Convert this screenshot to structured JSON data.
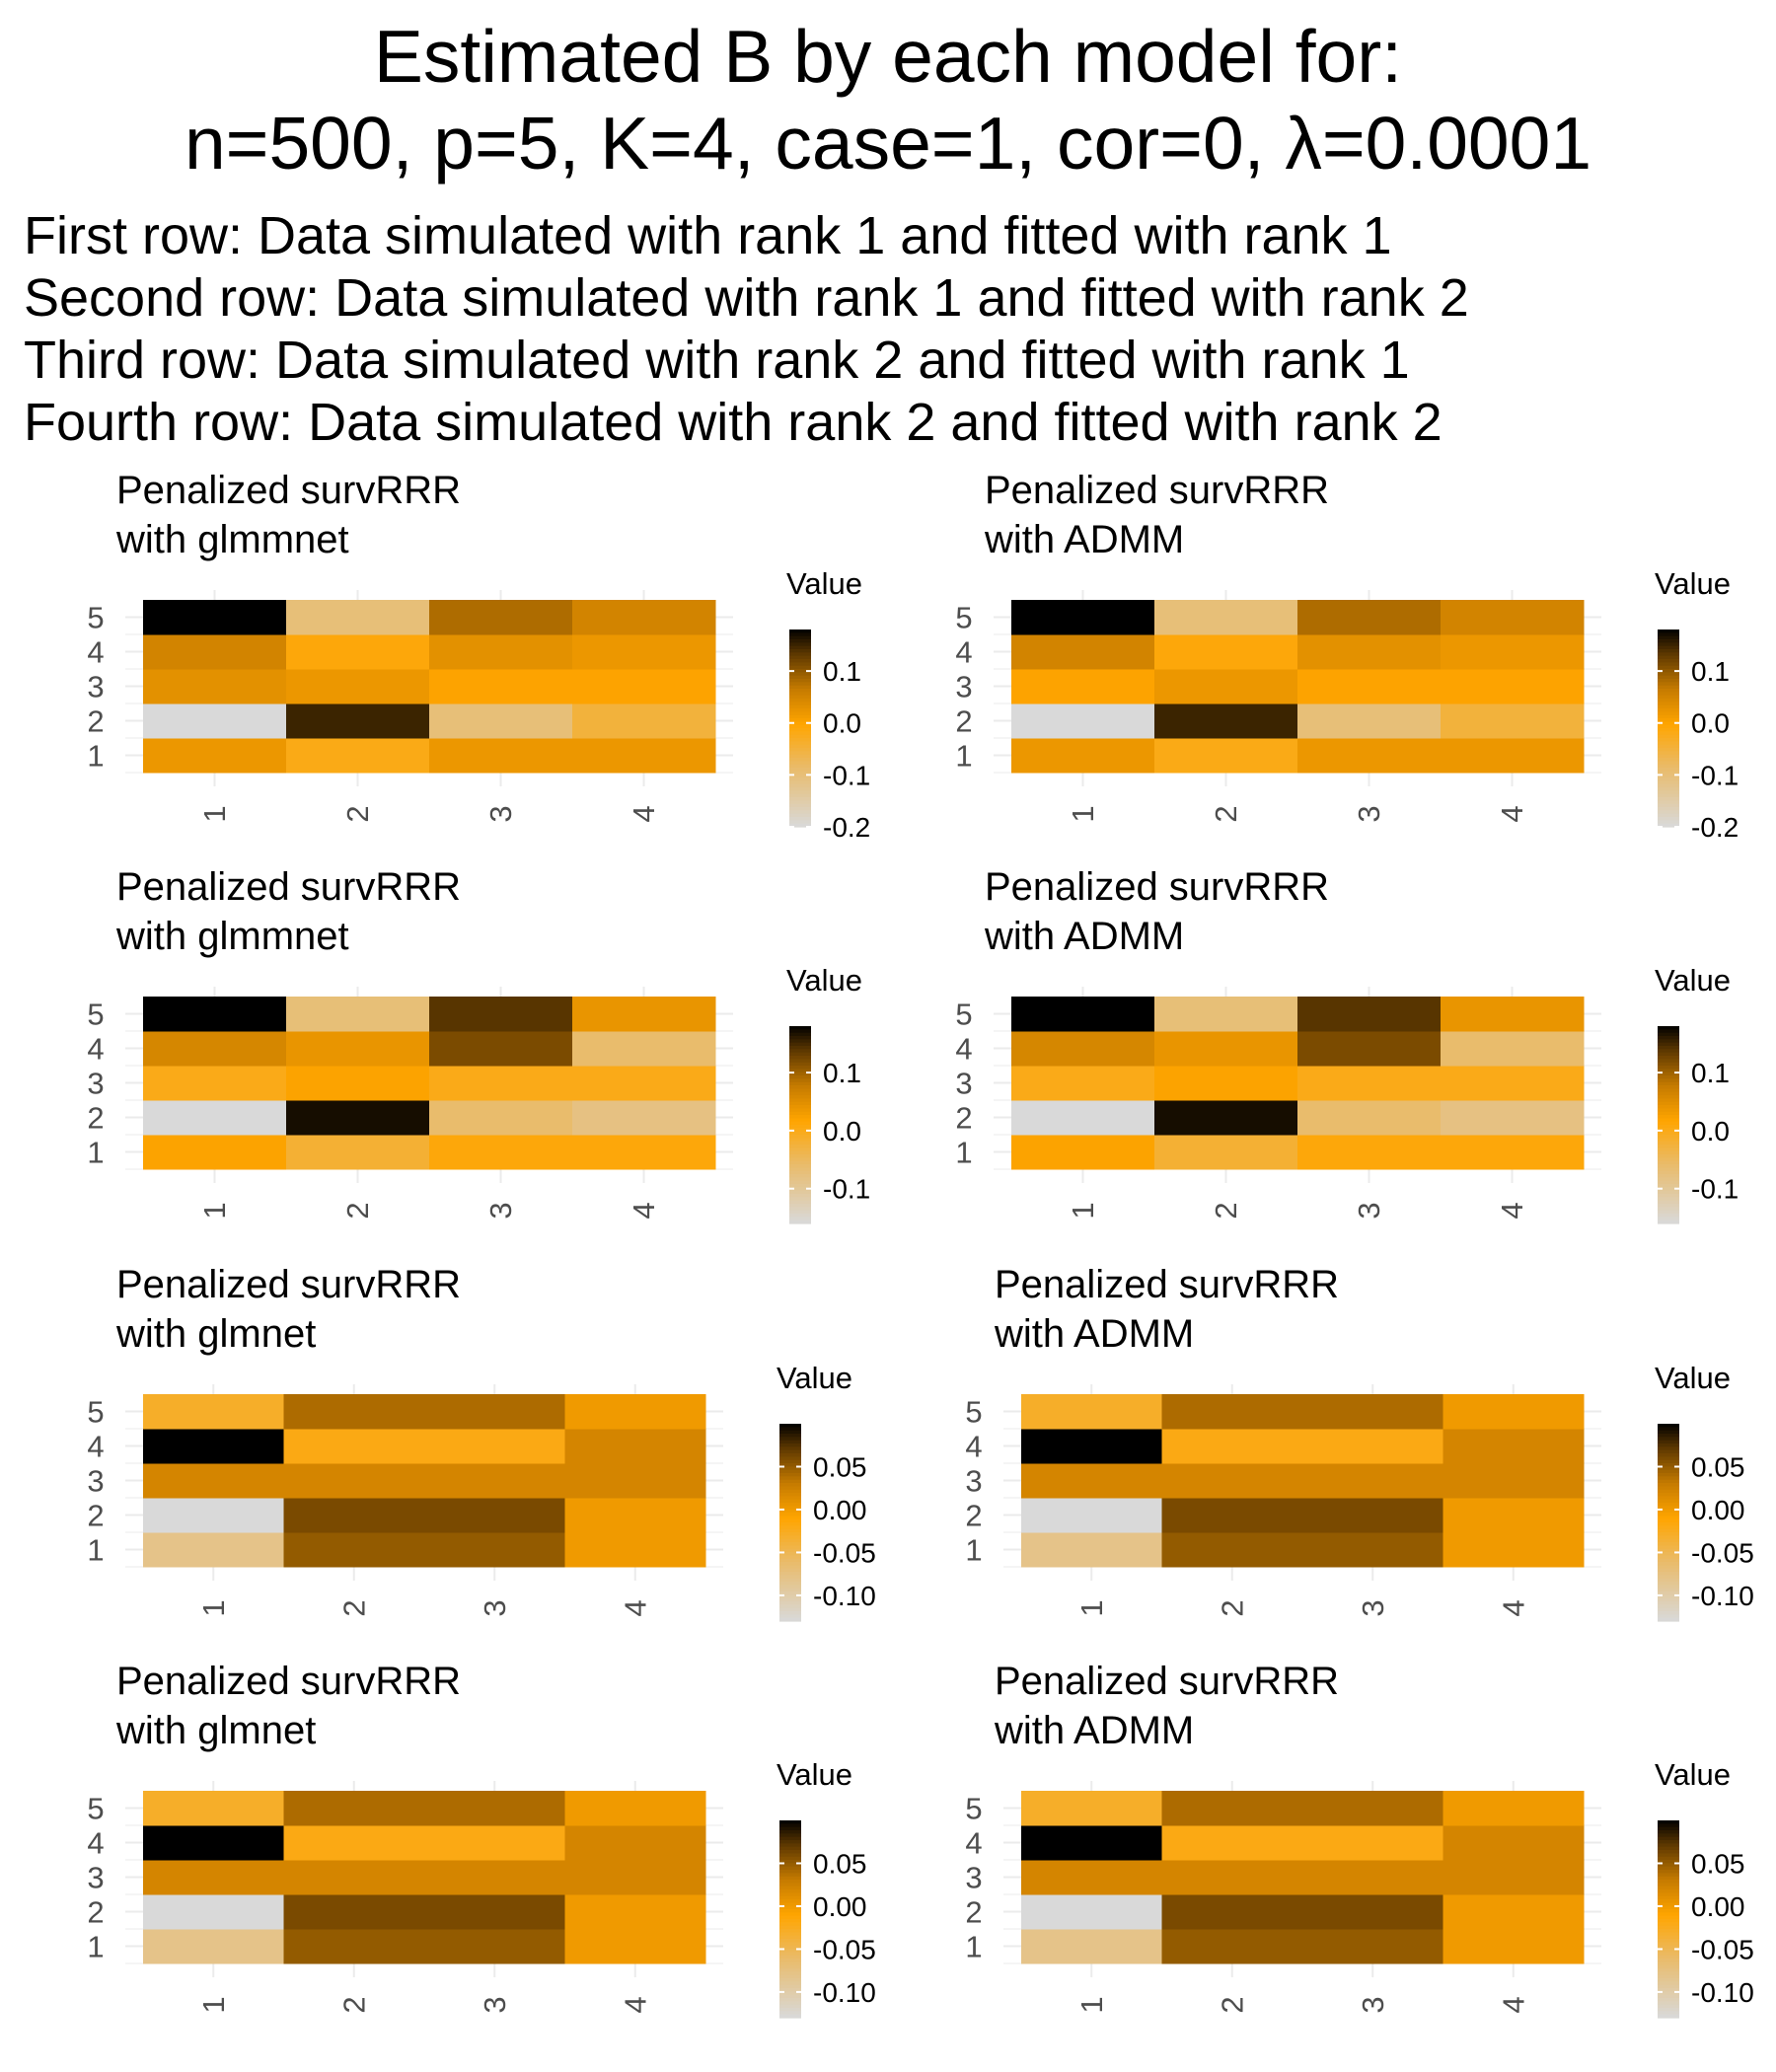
{
  "title_lines": [
    "Estimated B by each model for:",
    "n=500, p=5, K=4, case=1, cor=0, λ=0.0001"
  ],
  "subtitle_lines": [
    "First row: Data simulated with rank 1 and fitted with rank 1",
    "Second row: Data simulated with rank 1 and fitted with rank 2",
    "Third row: Data simulated with rank 2 and fitted with rank 1",
    "Fourth row: Data simulated with rank 2 and fitted with rank 2"
  ],
  "colors": {
    "low": "#d9d9d9",
    "mid_low": "#e9bb6a",
    "mid": "#ffa500",
    "mid_high": "#c47a00",
    "high_mid": "#5a3600",
    "high": "#000000",
    "grid": "#ebebeb",
    "axis_text": "#4d4d4d"
  },
  "chart_data": [
    {
      "type": "heatmap",
      "title": "Penalized survRRR\nwith glmmnet",
      "x_ticks": [
        "1",
        "2",
        "3",
        "4"
      ],
      "y_ticks": [
        "1",
        "2",
        "3",
        "4",
        "5"
      ],
      "legend_title": "Value",
      "legend_ticks": [
        0.1,
        0.0,
        -0.1,
        -0.2
      ],
      "value_range": [
        -0.2,
        0.18
      ],
      "values": [
        [
          0.02,
          -0.2,
          0.03,
          0.05,
          0.18
        ],
        [
          -0.02,
          0.15,
          0.02,
          -0.01,
          -0.1
        ],
        [
          0.02,
          -0.1,
          0.0,
          0.03,
          0.08
        ],
        [
          0.02,
          -0.05,
          0.0,
          0.02,
          0.05
        ]
      ]
    },
    {
      "type": "heatmap",
      "title": "Penalized survRRR\nwith ADMM",
      "x_ticks": [
        "1",
        "2",
        "3",
        "4"
      ],
      "y_ticks": [
        "1",
        "2",
        "3",
        "4",
        "5"
      ],
      "legend_title": "Value",
      "legend_ticks": [
        0.1,
        0.0,
        -0.1,
        -0.2
      ],
      "value_range": [
        -0.2,
        0.18
      ],
      "values": [
        [
          0.02,
          -0.2,
          0.0,
          0.05,
          0.18
        ],
        [
          -0.02,
          0.15,
          0.02,
          -0.01,
          -0.1
        ],
        [
          0.02,
          -0.1,
          0.0,
          0.03,
          0.08
        ],
        [
          0.02,
          -0.05,
          0.0,
          0.02,
          0.05
        ]
      ]
    },
    {
      "type": "heatmap",
      "title": "Penalized survRRR\nwith glmmnet",
      "x_ticks": [
        "1",
        "2",
        "3",
        "4"
      ],
      "y_ticks": [
        "1",
        "2",
        "3",
        "4",
        "5"
      ],
      "legend_title": "Value",
      "legend_ticks": [
        0.1,
        0.0,
        -0.1
      ],
      "value_range": [
        -0.16,
        0.18
      ],
      "values": [
        [
          0.02,
          -0.16,
          0.0,
          0.06,
          0.18
        ],
        [
          -0.02,
          0.17,
          0.02,
          0.04,
          -0.07
        ],
        [
          0.01,
          -0.06,
          0.0,
          0.12,
          0.14
        ],
        [
          0.01,
          -0.08,
          0.0,
          -0.06,
          0.04
        ]
      ]
    },
    {
      "type": "heatmap",
      "title": "Penalized survRRR\nwith ADMM",
      "x_ticks": [
        "1",
        "2",
        "3",
        "4"
      ],
      "y_ticks": [
        "1",
        "2",
        "3",
        "4",
        "5"
      ],
      "legend_title": "Value",
      "legend_ticks": [
        0.1,
        0.0,
        -0.1
      ],
      "value_range": [
        -0.16,
        0.18
      ],
      "values": [
        [
          0.02,
          -0.16,
          0.0,
          0.06,
          0.18
        ],
        [
          -0.02,
          0.17,
          0.02,
          0.04,
          -0.07
        ],
        [
          0.01,
          -0.06,
          0.0,
          0.12,
          0.14
        ],
        [
          0.01,
          -0.08,
          0.0,
          -0.06,
          0.04
        ]
      ]
    },
    {
      "type": "heatmap",
      "title": "Penalized survRRR\nwith glmnet",
      "x_ticks": [
        "1",
        "2",
        "3",
        "4"
      ],
      "y_ticks": [
        "1",
        "2",
        "3",
        "4",
        "5"
      ],
      "legend_title": "Value",
      "legend_ticks": [
        0.05,
        0.0,
        -0.05,
        -0.1
      ],
      "value_range": [
        -0.13,
        0.1
      ],
      "values": [
        [
          -0.08,
          -0.13,
          0.02,
          0.1,
          -0.03
        ],
        [
          0.05,
          0.06,
          0.02,
          -0.02,
          0.04
        ],
        [
          0.05,
          0.06,
          0.02,
          -0.02,
          0.04
        ],
        [
          0.0,
          0.0,
          0.02,
          0.02,
          0.0
        ]
      ]
    },
    {
      "type": "heatmap",
      "title": "Penalized survRRR\nwith ADMM",
      "x_ticks": [
        "1",
        "2",
        "3",
        "4"
      ],
      "y_ticks": [
        "1",
        "2",
        "3",
        "4",
        "5"
      ],
      "legend_title": "Value",
      "legend_ticks": [
        0.05,
        0.0,
        -0.05,
        -0.1
      ],
      "value_range": [
        -0.13,
        0.1
      ],
      "values": [
        [
          -0.08,
          -0.13,
          0.02,
          0.1,
          -0.03
        ],
        [
          0.05,
          0.06,
          0.02,
          -0.02,
          0.04
        ],
        [
          0.05,
          0.06,
          0.02,
          -0.02,
          0.04
        ],
        [
          0.0,
          0.0,
          0.02,
          0.02,
          0.0
        ]
      ]
    },
    {
      "type": "heatmap",
      "title": "Penalized survRRR\nwith glmnet",
      "x_ticks": [
        "1",
        "2",
        "3",
        "4"
      ],
      "y_ticks": [
        "1",
        "2",
        "3",
        "4",
        "5"
      ],
      "legend_title": "Value",
      "legend_ticks": [
        0.05,
        0.0,
        -0.05,
        -0.1
      ],
      "value_range": [
        -0.13,
        0.1
      ],
      "values": [
        [
          -0.08,
          -0.13,
          0.02,
          0.1,
          -0.03
        ],
        [
          0.05,
          0.06,
          0.02,
          -0.02,
          0.04
        ],
        [
          0.05,
          0.06,
          0.02,
          -0.02,
          0.04
        ],
        [
          0.0,
          0.0,
          0.02,
          0.02,
          0.0
        ]
      ]
    },
    {
      "type": "heatmap",
      "title": "Penalized survRRR\nwith ADMM",
      "x_ticks": [
        "1",
        "2",
        "3",
        "4"
      ],
      "y_ticks": [
        "1",
        "2",
        "3",
        "4",
        "5"
      ],
      "legend_title": "Value",
      "legend_ticks": [
        0.05,
        0.0,
        -0.05,
        -0.1
      ],
      "value_range": [
        -0.13,
        0.1
      ],
      "values": [
        [
          -0.08,
          -0.13,
          0.02,
          0.1,
          -0.03
        ],
        [
          0.05,
          0.06,
          0.02,
          -0.02,
          0.04
        ],
        [
          0.05,
          0.06,
          0.02,
          -0.02,
          0.04
        ],
        [
          0.0,
          0.0,
          0.02,
          0.02,
          0.0
        ]
      ]
    }
  ]
}
